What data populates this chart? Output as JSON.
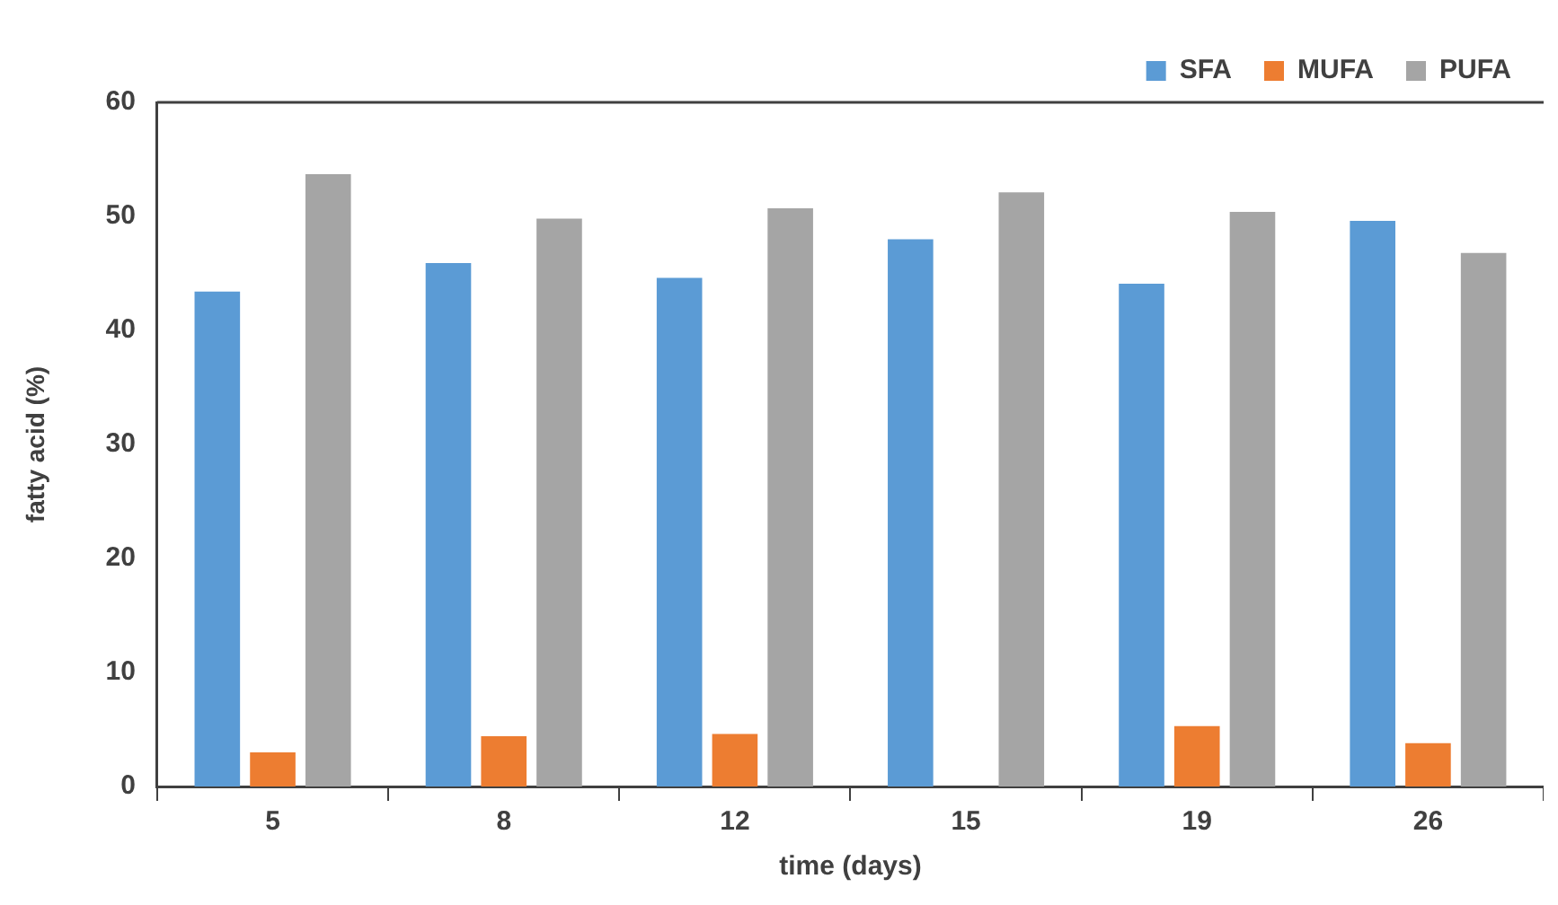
{
  "chart_data": {
    "type": "bar",
    "xlabel": "time (days)",
    "ylabel": "fatty acid (%)",
    "categories": [
      "5",
      "8",
      "12",
      "15",
      "19",
      "26"
    ],
    "series": [
      {
        "name": "SFA",
        "color": "#5b9bd5",
        "values": [
          43.4,
          45.9,
          44.6,
          48.0,
          44.1,
          49.6
        ]
      },
      {
        "name": "MUFA",
        "color": "#ed7d31",
        "values": [
          3.0,
          4.4,
          4.6,
          null,
          5.3,
          3.8
        ]
      },
      {
        "name": "PUFA",
        "color": "#a5a5a5",
        "values": [
          53.7,
          49.8,
          50.7,
          52.1,
          50.4,
          46.8
        ]
      }
    ],
    "ylim": [
      0,
      60
    ],
    "yticks": [
      0,
      10,
      20,
      30,
      40,
      50,
      60
    ],
    "grid": false,
    "legend": "top right"
  }
}
